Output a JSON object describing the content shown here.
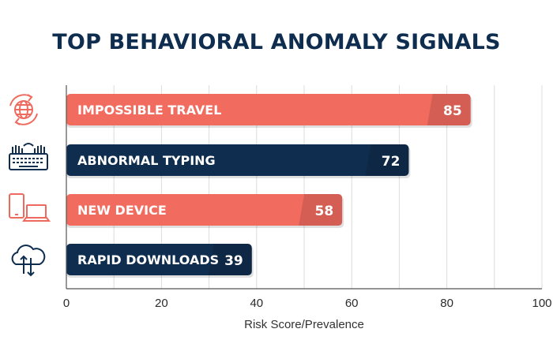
{
  "chart_data": {
    "type": "bar",
    "orientation": "horizontal",
    "title": "TOP BEHAVIORAL ANOMALY SIGNALS",
    "xlabel": "Risk Score/Prevalence",
    "ylabel": "",
    "xlim": [
      0,
      100
    ],
    "xticks": [
      0,
      20,
      40,
      60,
      80,
      100
    ],
    "grid": true,
    "categories": [
      "IMPOSSIBLE TRAVEL",
      "ABNORMAL TYPING",
      "NEW DEVICE",
      "RAPID DOWNLOADS"
    ],
    "values": [
      85,
      72,
      58,
      39
    ],
    "bar_colors": [
      "#f26b5f",
      "#0f2d4f",
      "#f26b5f",
      "#0f2d4f"
    ],
    "icons": [
      "globe-sync-icon",
      "keyboard-hands-icon",
      "devices-icon",
      "cloud-transfer-icon"
    ],
    "icon_colors": [
      "#ef6a5e",
      "#0f2d4f",
      "#ef6a5e",
      "#0f2d4f"
    ]
  },
  "colors": {
    "title": "#0f2d4f",
    "grid": "#dcdcdc",
    "axis": "#555555"
  }
}
